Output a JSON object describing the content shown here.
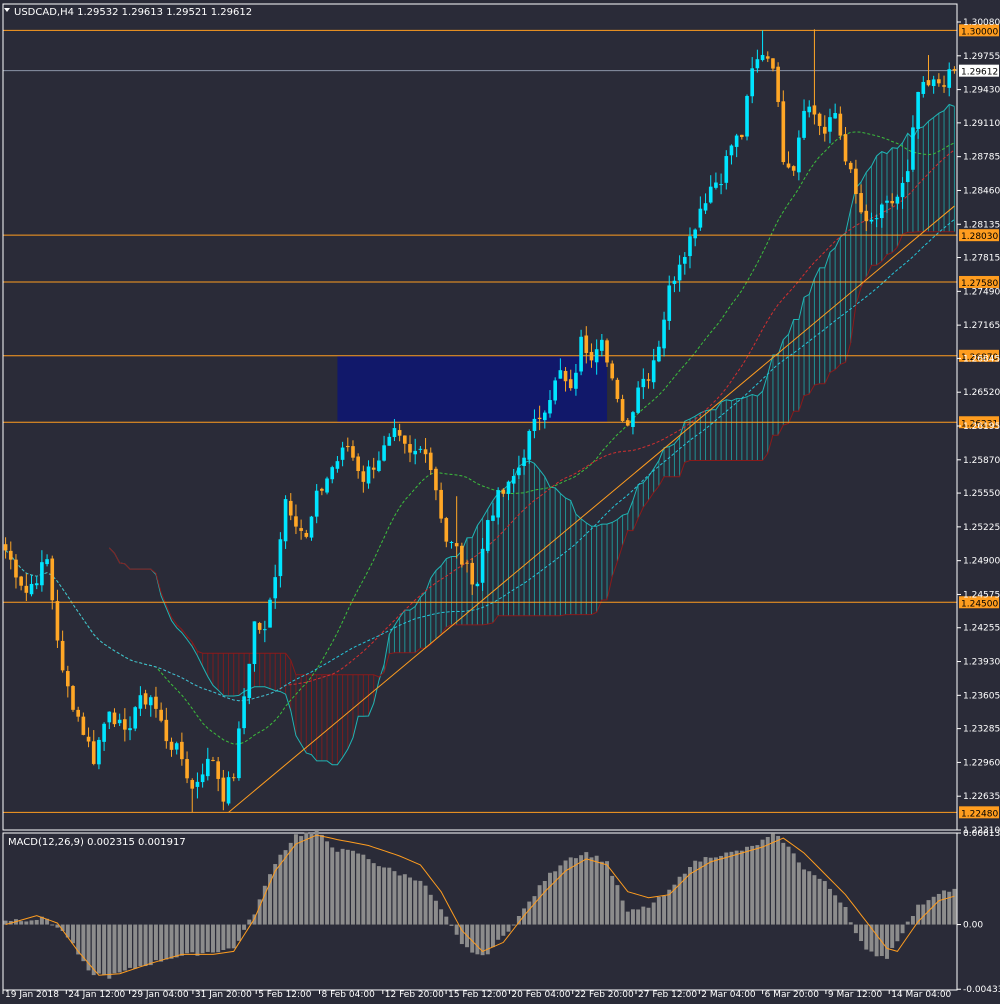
{
  "colors": {
    "background": "#2a2b38",
    "frame": "#ffffff",
    "bull_candle": "#00e5ff",
    "bear_candle": "#ffa726",
    "level_line": "#ff9d1f",
    "level_label_bg": "#ff9d1f",
    "level_label_text": "#000000",
    "current_price_line": "#8a93a6",
    "blue_box": "#0e1670",
    "kumo_bull": "#1fa3a3",
    "kumo_bear": "#8b1a1a",
    "senkou_a": "#1fb5b5",
    "senkou_b": "#8b1a1a",
    "ma_green": "#3cbf3c",
    "ma_red": "#d32f2f",
    "ma_cyan": "#26c6da",
    "macd_hist": "#8c8c8c",
    "macd_signal": "#ff9d1f",
    "text": "#ffffff"
  },
  "chart_data": [
    {
      "type": "candlestick",
      "symbol_title": "USDCAD,H4  1.29532 1.29613 1.29521 1.29612",
      "ylim": [
        1.2231,
        1.3008
      ],
      "y_ticks": [
        "1.30080",
        "1.29755",
        "1.29430",
        "1.29110",
        "1.28785",
        "1.28460",
        "1.28135",
        "1.27815",
        "1.27490",
        "1.27165",
        "1.26845",
        "1.26520",
        "1.26195",
        "1.25870",
        "1.25550",
        "1.25225",
        "1.24900",
        "1.24575",
        "1.24255",
        "1.23930",
        "1.23605",
        "1.23285",
        "1.22960",
        "1.22635",
        "1.22310"
      ],
      "x_ticks": [
        "19 Jan 2018",
        "24 Jan 12:00",
        "29 Jan 04:00",
        "31 Jan 20:00",
        "5 Feb 12:00",
        "8 Feb 04:00",
        "12 Feb 20:00",
        "15 Feb 12:00",
        "20 Feb 04:00",
        "22 Feb 20:00",
        "27 Feb 12:00",
        "2 Mar 04:00",
        "6 Mar 20:00",
        "9 Mar 12:00",
        "14 Mar 04:00"
      ],
      "levels": [
        {
          "price": 1.3,
          "label": "1.30000"
        },
        {
          "price": 1.2803,
          "label": "1.28030"
        },
        {
          "price": 1.2758,
          "label": "1.27580"
        },
        {
          "price": 1.2687,
          "label": "1.26870"
        },
        {
          "price": 1.26231,
          "label": "1.26231"
        },
        {
          "price": 1.245,
          "label": "1.24500"
        },
        {
          "price": 1.2248,
          "label": "1.22480"
        }
      ],
      "current_price": {
        "price": 1.29612,
        "label": "1.29612"
      },
      "highlight_box": {
        "x_from": 64,
        "x_to": 116,
        "price_high": 1.2687,
        "price_low": 1.26231
      },
      "trendline": {
        "x_from": 43,
        "price_from": 1.2248,
        "x_to": 183,
        "price_to": 1.2831
      },
      "keypoints": [
        [
          0,
          1.25
        ],
        [
          4,
          1.246
        ],
        [
          8,
          1.249
        ],
        [
          11,
          1.238
        ],
        [
          14,
          1.234
        ],
        [
          17,
          1.23
        ],
        [
          20,
          1.235
        ],
        [
          23,
          1.232
        ],
        [
          25,
          1.235
        ],
        [
          28,
          1.236
        ],
        [
          31,
          1.232
        ],
        [
          34,
          1.23
        ],
        [
          36,
          1.227
        ],
        [
          38,
          1.229
        ],
        [
          40,
          1.23
        ],
        [
          42,
          1.2265
        ],
        [
          44,
          1.2285
        ],
        [
          46,
          1.236
        ],
        [
          48,
          1.243
        ],
        [
          50,
          1.242
        ],
        [
          52,
          1.248
        ],
        [
          54,
          1.255
        ],
        [
          56,
          1.253
        ],
        [
          58,
          1.251
        ],
        [
          60,
          1.255
        ],
        [
          63,
          1.258
        ],
        [
          66,
          1.26
        ],
        [
          69,
          1.257
        ],
        [
          72,
          1.259
        ],
        [
          75,
          1.261
        ],
        [
          78,
          1.259
        ],
        [
          81,
          1.26
        ],
        [
          83,
          1.256
        ],
        [
          85,
          1.251
        ],
        [
          87,
          1.25
        ],
        [
          89,
          1.248
        ],
        [
          91,
          1.247
        ],
        [
          93,
          1.253
        ],
        [
          95,
          1.255
        ],
        [
          97,
          1.256
        ],
        [
          99,
          1.258
        ],
        [
          101,
          1.261
        ],
        [
          103,
          1.263
        ],
        [
          105,
          1.265
        ],
        [
          107,
          1.267
        ],
        [
          109,
          1.265
        ],
        [
          111,
          1.27
        ],
        [
          113,
          1.269
        ],
        [
          115,
          1.271
        ],
        [
          116,
          1.268
        ],
        [
          118,
          1.264
        ],
        [
          120,
          1.262
        ],
        [
          122,
          1.266
        ],
        [
          124,
          1.267
        ],
        [
          126,
          1.27
        ],
        [
          128,
          1.275
        ],
        [
          130,
          1.278
        ],
        [
          132,
          1.28
        ],
        [
          134,
          1.283
        ],
        [
          136,
          1.285
        ],
        [
          138,
          1.286
        ],
        [
          140,
          1.289
        ],
        [
          142,
          1.29
        ],
        [
          144,
          1.296
        ],
        [
          146,
          1.298
        ],
        [
          148,
          1.297
        ],
        [
          150,
          1.288
        ],
        [
          152,
          1.287
        ],
        [
          154,
          1.293
        ],
        [
          156,
          1.292
        ],
        [
          158,
          1.29
        ],
        [
          160,
          1.292
        ],
        [
          162,
          1.288
        ],
        [
          164,
          1.284
        ],
        [
          166,
          1.281
        ],
        [
          168,
          1.282
        ],
        [
          170,
          1.283
        ],
        [
          172,
          1.284
        ],
        [
          174,
          1.286
        ],
        [
          176,
          1.294
        ],
        [
          178,
          1.2945
        ],
        [
          180,
          1.295
        ],
        [
          182,
          1.2955
        ],
        [
          183,
          1.29612
        ]
      ]
    },
    {
      "type": "bar",
      "indicator_title": "MACD(12,26,9) 0.002315 0.001917",
      "ylim": [
        -0.00439,
        0.00614
      ],
      "y_ticks": [
        "0.006138",
        "0.00",
        "-0.004339"
      ],
      "hist_keypoints": [
        [
          0,
          0.0003
        ],
        [
          8,
          0.0004
        ],
        [
          12,
          -0.0008
        ],
        [
          16,
          -0.0032
        ],
        [
          20,
          -0.0035
        ],
        [
          26,
          -0.0028
        ],
        [
          32,
          -0.0022
        ],
        [
          38,
          -0.0019
        ],
        [
          44,
          -0.0016
        ],
        [
          48,
          0.0008
        ],
        [
          52,
          0.0042
        ],
        [
          56,
          0.006
        ],
        [
          60,
          0.0062
        ],
        [
          64,
          0.005
        ],
        [
          68,
          0.0048
        ],
        [
          72,
          0.004
        ],
        [
          76,
          0.0034
        ],
        [
          80,
          0.003
        ],
        [
          84,
          0.001
        ],
        [
          88,
          -0.0014
        ],
        [
          92,
          -0.0022
        ],
        [
          96,
          -0.0008
        ],
        [
          100,
          0.001
        ],
        [
          104,
          0.003
        ],
        [
          108,
          0.0044
        ],
        [
          112,
          0.0048
        ],
        [
          116,
          0.0042
        ],
        [
          120,
          0.0008
        ],
        [
          124,
          0.0012
        ],
        [
          128,
          0.0022
        ],
        [
          132,
          0.004
        ],
        [
          136,
          0.0046
        ],
        [
          140,
          0.0048
        ],
        [
          144,
          0.0052
        ],
        [
          148,
          0.006
        ],
        [
          150,
          0.0056
        ],
        [
          154,
          0.0038
        ],
        [
          158,
          0.0028
        ],
        [
          162,
          0.0012
        ],
        [
          164,
          -0.0006
        ],
        [
          166,
          -0.0018
        ],
        [
          170,
          -0.0022
        ],
        [
          172,
          -0.001
        ],
        [
          176,
          0.0012
        ],
        [
          180,
          0.0022
        ],
        [
          183,
          0.0023
        ]
      ],
      "signal_keypoints": [
        [
          0,
          0.0
        ],
        [
          6,
          0.0006
        ],
        [
          10,
          0.0001
        ],
        [
          14,
          -0.0018
        ],
        [
          18,
          -0.0034
        ],
        [
          22,
          -0.0033
        ],
        [
          28,
          -0.0026
        ],
        [
          34,
          -0.002
        ],
        [
          40,
          -0.002
        ],
        [
          44,
          -0.0018
        ],
        [
          48,
          0.0004
        ],
        [
          52,
          0.0036
        ],
        [
          56,
          0.0054
        ],
        [
          60,
          0.006
        ],
        [
          64,
          0.0057
        ],
        [
          70,
          0.0053
        ],
        [
          76,
          0.0046
        ],
        [
          80,
          0.004
        ],
        [
          84,
          0.0022
        ],
        [
          88,
          -0.0004
        ],
        [
          92,
          -0.0018
        ],
        [
          96,
          -0.0012
        ],
        [
          100,
          0.0006
        ],
        [
          104,
          0.0022
        ],
        [
          108,
          0.0036
        ],
        [
          112,
          0.0044
        ],
        [
          116,
          0.004
        ],
        [
          120,
          0.0022
        ],
        [
          124,
          0.0018
        ],
        [
          128,
          0.002
        ],
        [
          132,
          0.0034
        ],
        [
          136,
          0.0042
        ],
        [
          140,
          0.0046
        ],
        [
          146,
          0.0052
        ],
        [
          150,
          0.0058
        ],
        [
          154,
          0.0048
        ],
        [
          158,
          0.0034
        ],
        [
          162,
          0.002
        ],
        [
          166,
          0.0002
        ],
        [
          170,
          -0.0016
        ],
        [
          172,
          -0.0018
        ],
        [
          176,
          0.0002
        ],
        [
          180,
          0.0016
        ],
        [
          183,
          0.0019
        ]
      ]
    }
  ]
}
